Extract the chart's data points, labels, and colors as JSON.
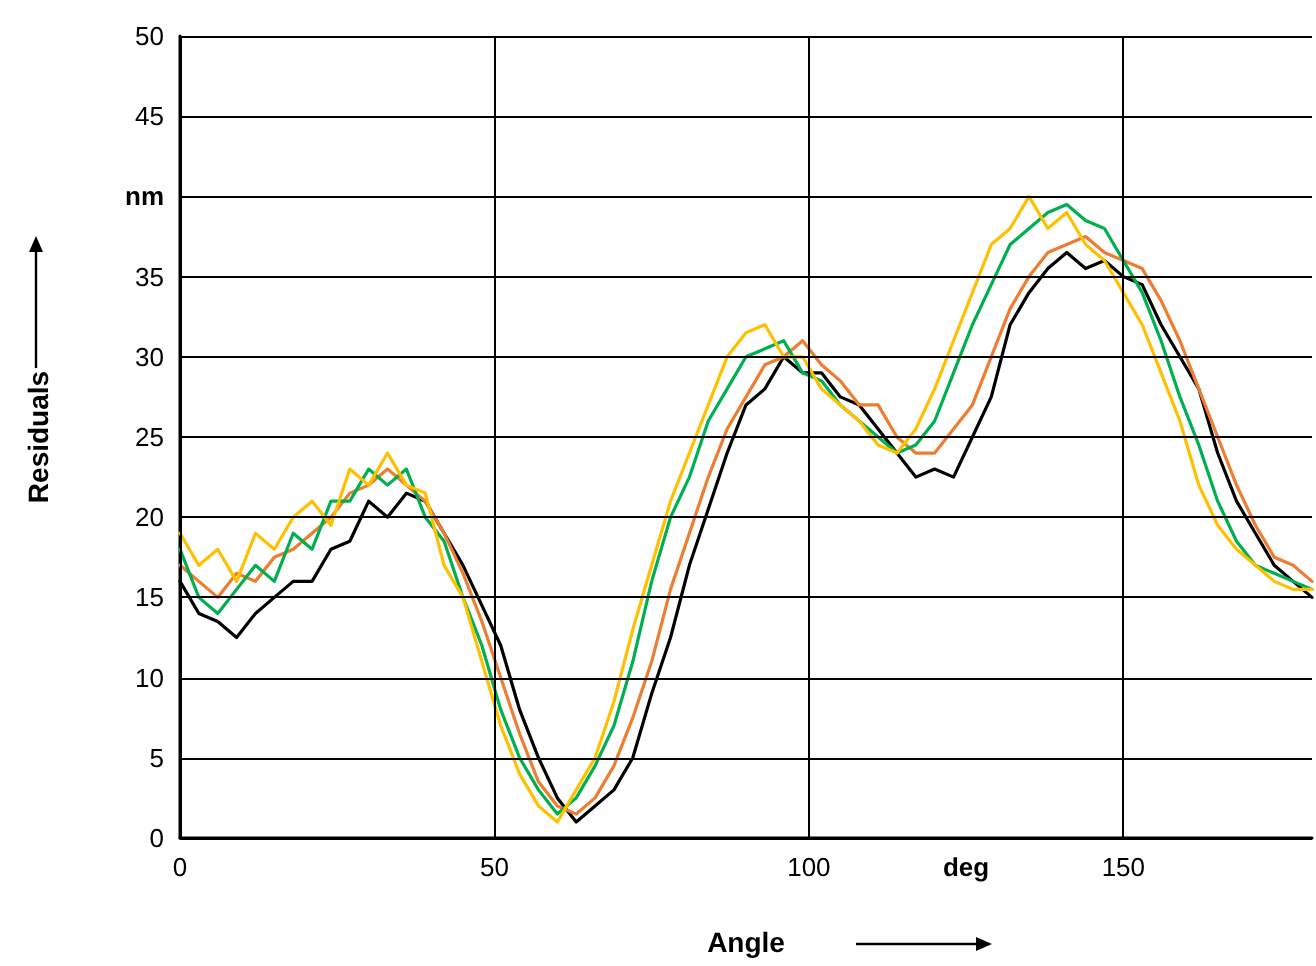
{
  "chart_data": {
    "type": "line",
    "xlabel": "Angle",
    "ylabel": "Residuals",
    "x": [
      0,
      3,
      6,
      9,
      12,
      15,
      18,
      21,
      24,
      27,
      30,
      33,
      36,
      39,
      42,
      45,
      48,
      51,
      54,
      57,
      60,
      63,
      66,
      69,
      72,
      75,
      78,
      81,
      84,
      87,
      90,
      93,
      96,
      99,
      102,
      105,
      108,
      111,
      114,
      117,
      120,
      123,
      126,
      129,
      132,
      135,
      138,
      141,
      144,
      147,
      150,
      153,
      156,
      159,
      162,
      165,
      168,
      171,
      174,
      177,
      180
    ],
    "series": [
      {
        "color": "#000000",
        "values": [
          16,
          14,
          13.5,
          12.5,
          14,
          15,
          16,
          16,
          18,
          18.5,
          21,
          20,
          21.5,
          21,
          19,
          17,
          14.5,
          12,
          8,
          5,
          2.5,
          1,
          2,
          3,
          5,
          9,
          12.5,
          17,
          20.5,
          24,
          27,
          28,
          30,
          29,
          29,
          27.5,
          27,
          25.5,
          24,
          22.5,
          23,
          22.5,
          25,
          27.5,
          32,
          34,
          35.5,
          36.5,
          35.5,
          36,
          35,
          34.5,
          32,
          30,
          28,
          24,
          21,
          19,
          17,
          16,
          15
        ]
      },
      {
        "color": "#ed7d31",
        "values": [
          17,
          16,
          15,
          16.5,
          16,
          17.5,
          18,
          19,
          20,
          21.5,
          22,
          23,
          22,
          21,
          19,
          16.5,
          13.5,
          10,
          6.5,
          3.5,
          2,
          1.5,
          2.5,
          4.5,
          7.5,
          11,
          15.5,
          19,
          22.5,
          25.5,
          27.5,
          29.5,
          30,
          31,
          29.5,
          28.5,
          27,
          27,
          25,
          24,
          24,
          25.5,
          27,
          30,
          33,
          35,
          36.5,
          37,
          37.5,
          36.5,
          36,
          35.5,
          33.5,
          31,
          28,
          25,
          22,
          19.5,
          17.5,
          17,
          16
        ]
      },
      {
        "color": "#00b050",
        "values": [
          18,
          15,
          14,
          15.5,
          17,
          16,
          19,
          18,
          21,
          21,
          23,
          22,
          23,
          20,
          18.5,
          15,
          12,
          8,
          5,
          3,
          1.5,
          2.5,
          4.5,
          7,
          11,
          16,
          20,
          22.5,
          26,
          28,
          30,
          30.5,
          31,
          29,
          28.5,
          27,
          26,
          25,
          24,
          24.5,
          26,
          29,
          32,
          34.5,
          37,
          38,
          39,
          39.5,
          38.5,
          38,
          36,
          34,
          31,
          27.5,
          24.5,
          21,
          18.5,
          17,
          16.5,
          16,
          15.5
        ]
      },
      {
        "color": "#ffc000",
        "values": [
          19,
          17,
          18,
          16,
          19,
          18,
          20,
          21,
          19.5,
          23,
          22,
          24,
          22,
          21.5,
          17,
          15,
          11,
          7,
          4,
          2,
          1,
          3,
          5,
          8.5,
          13,
          17,
          21,
          24,
          27,
          30,
          31.5,
          32,
          30,
          30,
          28,
          27,
          26,
          24.5,
          24,
          25.5,
          28,
          31,
          34,
          37,
          38,
          40,
          38,
          39,
          37,
          36,
          34,
          32,
          29,
          26,
          22,
          19.5,
          18,
          17,
          16,
          15.5,
          15.5
        ]
      }
    ],
    "xlim": [
      0,
      180
    ],
    "xticks": [
      0,
      50,
      100,
      {
        "value": 125,
        "label": "deg"
      },
      150
    ],
    "ylim": [
      0,
      50
    ],
    "yticks": [
      0,
      5,
      10,
      15,
      20,
      25,
      30,
      35,
      {
        "value": 40,
        "label": "nm"
      },
      45,
      50
    ],
    "grid": true,
    "marker": "none",
    "line_style": "solid"
  }
}
